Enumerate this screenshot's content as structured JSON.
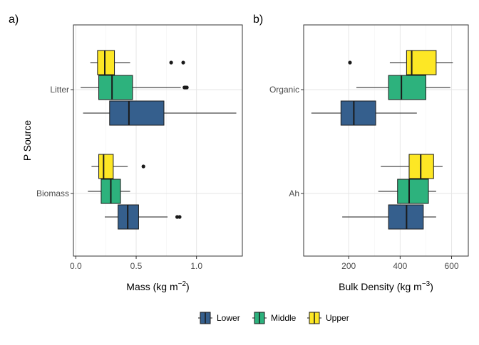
{
  "chart_data": [
    {
      "type": "boxplot",
      "panel_label": "a)",
      "orientation": "horizontal",
      "xlabel": "Mass (kg m",
      "xlabel_sup": "−2",
      "xlabel_end": ")",
      "ylabel": "P Source",
      "xlim": [
        -0.02,
        1.38
      ],
      "x_ticks": [
        0.0,
        0.5,
        1.0
      ],
      "x_tick_labels": [
        "0.0",
        "0.5",
        "1.0"
      ],
      "categories": [
        "Litter",
        "Biomass"
      ],
      "grid": true,
      "groups": [
        {
          "category": "Litter",
          "boxes": [
            {
              "series": "Upper",
              "whisker_low": 0.12,
              "q1": 0.18,
              "median": 0.24,
              "q3": 0.32,
              "whisker_high": 0.45,
              "outliers": [
                0.79,
                0.89
              ]
            },
            {
              "series": "Middle",
              "whisker_low": 0.04,
              "q1": 0.19,
              "median": 0.3,
              "q3": 0.47,
              "whisker_high": 0.87,
              "outliers": [
                0.9,
                0.91,
                0.92
              ]
            },
            {
              "series": "Lower",
              "whisker_low": 0.06,
              "q1": 0.28,
              "median": 0.44,
              "q3": 0.73,
              "whisker_high": 1.33,
              "outliers": []
            }
          ]
        },
        {
          "category": "Biomass",
          "boxes": [
            {
              "series": "Upper",
              "whisker_low": 0.13,
              "q1": 0.19,
              "median": 0.23,
              "q3": 0.31,
              "whisker_high": 0.43,
              "outliers": [
                0.56
              ]
            },
            {
              "series": "Middle",
              "whisker_low": 0.1,
              "q1": 0.21,
              "median": 0.29,
              "q3": 0.37,
              "whisker_high": 0.45,
              "outliers": []
            },
            {
              "series": "Lower",
              "whisker_low": 0.24,
              "q1": 0.35,
              "median": 0.43,
              "q3": 0.52,
              "whisker_high": 0.76,
              "outliers": [
                0.84,
                0.86
              ]
            }
          ]
        }
      ]
    },
    {
      "type": "boxplot",
      "panel_label": "b)",
      "orientation": "horizontal",
      "xlabel": "Bulk Density (kg m",
      "xlabel_sup": "−3",
      "xlabel_end": ")",
      "ylabel": "",
      "xlim": [
        25,
        665
      ],
      "x_ticks": [
        200,
        400,
        600
      ],
      "x_tick_labels": [
        "200",
        "400",
        "600"
      ],
      "categories": [
        "Organic",
        "Ah"
      ],
      "grid": true,
      "groups": [
        {
          "category": "Organic",
          "boxes": [
            {
              "series": "Upper",
              "whisker_low": 360,
              "q1": 425,
              "median": 445,
              "q3": 540,
              "whisker_high": 605,
              "outliers": [
                205
              ]
            },
            {
              "series": "Middle",
              "whisker_low": 230,
              "q1": 355,
              "median": 405,
              "q3": 500,
              "whisker_high": 595,
              "outliers": []
            },
            {
              "series": "Lower",
              "whisker_low": 55,
              "q1": 170,
              "median": 220,
              "q3": 305,
              "whisker_high": 465,
              "outliers": []
            }
          ]
        },
        {
          "category": "Ah",
          "boxes": [
            {
              "series": "Upper",
              "whisker_low": 325,
              "q1": 435,
              "median": 480,
              "q3": 530,
              "whisker_high": 565,
              "outliers": []
            },
            {
              "series": "Middle",
              "whisker_low": 315,
              "q1": 390,
              "median": 435,
              "q3": 510,
              "whisker_high": 540,
              "outliers": []
            },
            {
              "series": "Lower",
              "whisker_low": 175,
              "q1": 355,
              "median": 425,
              "q3": 490,
              "whisker_high": 540,
              "outliers": []
            }
          ]
        }
      ]
    }
  ],
  "legend": {
    "placement": "bottom",
    "entries": [
      {
        "name": "Lower",
        "color": "#355F8D"
      },
      {
        "name": "Middle",
        "color": "#2DB27D"
      },
      {
        "name": "Upper",
        "color": "#FDE725"
      }
    ]
  },
  "colors": {
    "Lower": "#355F8D",
    "Middle": "#2DB27D",
    "Upper": "#FDE725",
    "outline": "#1a1a1a",
    "panel_border": "#333333",
    "grid_major": "#e6e6e6",
    "grid_minor": "#f2f2f2",
    "tick_text": "#4d4d4d",
    "title_text": "#000000"
  }
}
